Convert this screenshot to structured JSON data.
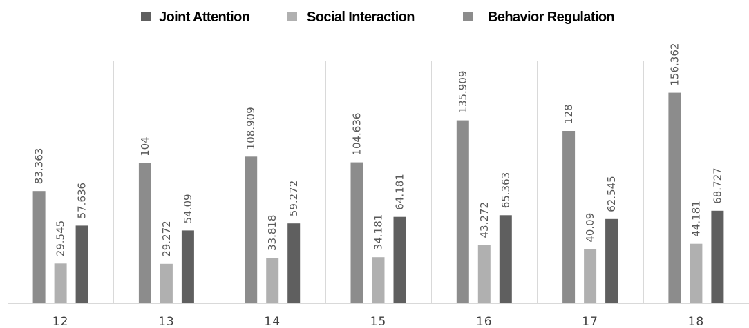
{
  "chart_data": {
    "type": "bar",
    "categories": [
      "12",
      "13",
      "14",
      "15",
      "16",
      "17",
      "18"
    ],
    "series": [
      {
        "name": "Joint Attention",
        "values": [
          57.636,
          54.09,
          59.272,
          64.181,
          65.363,
          62.545,
          68.727
        ],
        "color": "#5f5f5f"
      },
      {
        "name": "Social Interaction",
        "values": [
          29.545,
          29.272,
          33.818,
          34.181,
          43.272,
          40.09,
          44.181
        ],
        "color": "#b0b0b0"
      },
      {
        "name": "Behavior Regulation",
        "values": [
          83.363,
          104,
          108.909,
          104.636,
          135.909,
          128,
          156.362
        ],
        "color": "#8c8c8c"
      }
    ],
    "bar_order": [
      "Behavior Regulation",
      "Social Interaction",
      "Joint Attention"
    ],
    "legend_position": "top",
    "ylim": [
      0,
      160
    ],
    "grid": "vertical category separators",
    "title": "",
    "xlabel": "",
    "ylabel": ""
  }
}
